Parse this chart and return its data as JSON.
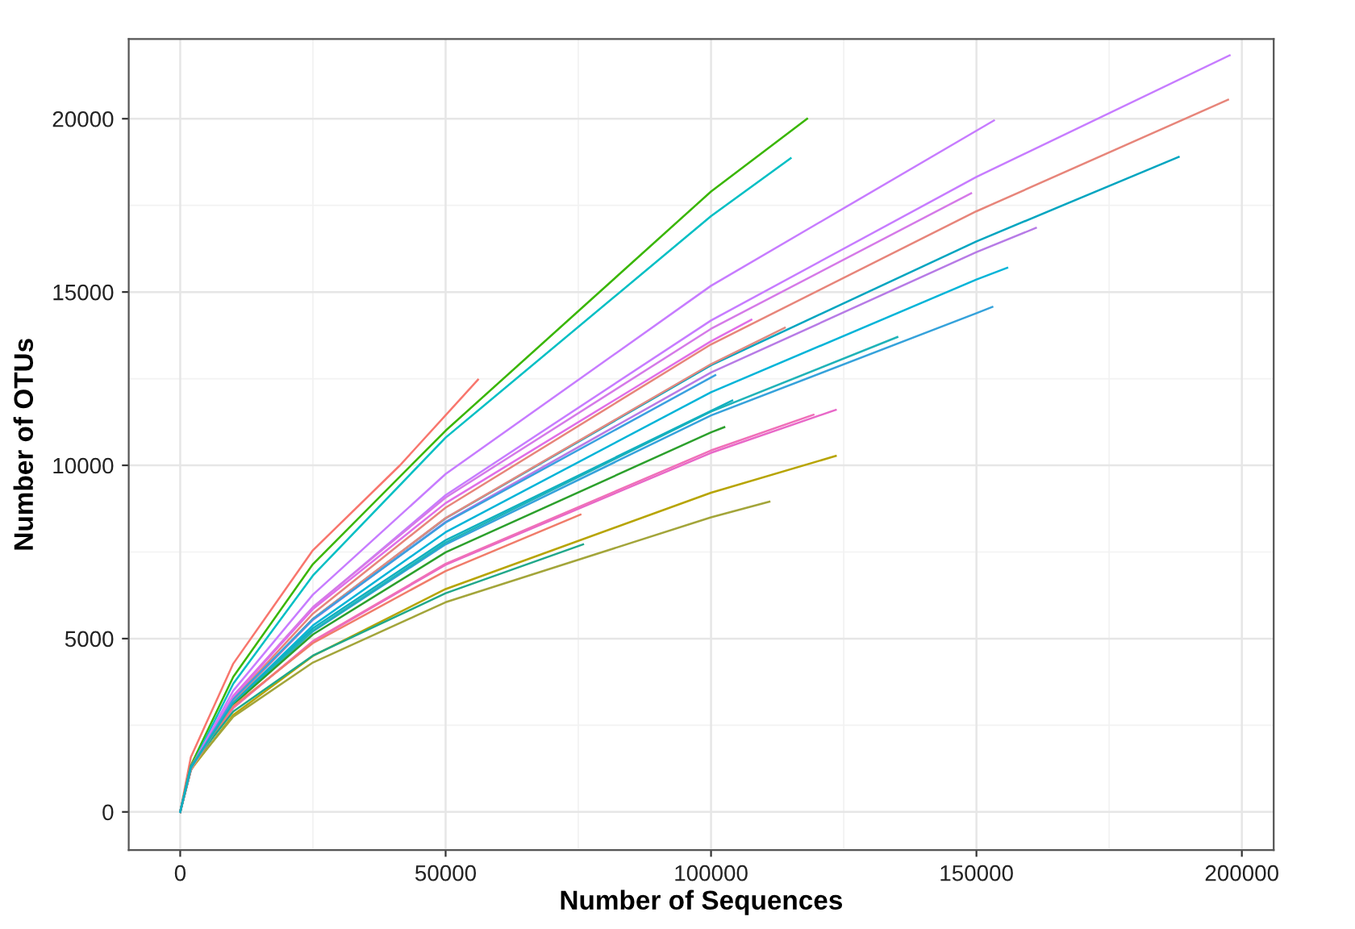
{
  "chart_data": {
    "type": "line",
    "xlabel": "Number of Sequences",
    "ylabel": "Number of OTUs",
    "xlim": [
      -9700,
      206000
    ],
    "ylim": [
      -1100,
      22300
    ],
    "xticks": [
      0,
      50000,
      100000,
      150000,
      200000
    ],
    "yticks": [
      0,
      5000,
      10000,
      15000,
      20000
    ],
    "grid": true,
    "legend": false,
    "line_style": "solid",
    "marker": "none",
    "series": [
      {
        "color": "#f8766d",
        "x": [
          0,
          2000,
          10000,
          25000,
          41400,
          56100
        ],
        "values": [
          0,
          1580,
          4280,
          7550,
          10000,
          12470
        ]
      },
      {
        "color": "#39b600",
        "x": [
          0,
          2000,
          10000,
          25000,
          50000,
          100000,
          118100
        ],
        "values": [
          0,
          1340,
          3900,
          7150,
          11000,
          17900,
          20000
        ]
      },
      {
        "color": "#00bfc4",
        "x": [
          0,
          2000,
          10000,
          25000,
          50000,
          100000,
          115000
        ],
        "values": [
          0,
          1270,
          3700,
          6820,
          10800,
          17190,
          18860
        ]
      },
      {
        "color": "#c77cff",
        "x": [
          0,
          2000,
          10000,
          25000,
          50000,
          100000,
          153300
        ],
        "values": [
          0,
          1260,
          3500,
          6270,
          9750,
          15180,
          19950
        ]
      },
      {
        "color": "#c77cff",
        "x": [
          0,
          2000,
          10000,
          25000,
          50000,
          100000,
          150000,
          197700
        ],
        "values": [
          0,
          1190,
          3300,
          5890,
          9140,
          14180,
          18320,
          21830
        ]
      },
      {
        "color": "#e7857a",
        "x": [
          0,
          2000,
          10000,
          25000,
          50000,
          100000,
          150000,
          197400
        ],
        "values": [
          0,
          1200,
          3250,
          5720,
          8780,
          13490,
          17330,
          20550
        ]
      },
      {
        "color": "#00a5c0",
        "x": [
          0,
          2000,
          10000,
          25000,
          50000,
          100000,
          150000,
          188100
        ],
        "values": [
          0,
          1210,
          3200,
          5570,
          8470,
          12890,
          16460,
          18900
        ]
      },
      {
        "color": "#d57ae8",
        "x": [
          0,
          2000,
          10000,
          25000,
          50000,
          100000,
          149000
        ],
        "values": [
          0,
          1240,
          3350,
          5910,
          9070,
          13940,
          17850
        ]
      },
      {
        "color": "#b77be6",
        "x": [
          0,
          2000,
          10000,
          25000,
          50000,
          100000,
          150000,
          161200
        ],
        "values": [
          0,
          1220,
          3200,
          5540,
          8370,
          12680,
          16150,
          16850
        ]
      },
      {
        "color": "#00b4d8",
        "x": [
          0,
          2000,
          10000,
          25000,
          50000,
          100000,
          150000,
          155800
        ],
        "values": [
          0,
          1230,
          3150,
          5380,
          8070,
          12110,
          15360,
          15700
        ]
      },
      {
        "color": "#35a2db",
        "x": [
          0,
          2000,
          10000,
          25000,
          50000,
          100000,
          150000,
          153000
        ],
        "values": [
          0,
          1250,
          3100,
          5210,
          7720,
          11440,
          14390,
          14570
        ]
      },
      {
        "color": "#e06ee8",
        "x": [
          0,
          2000,
          10000,
          25000,
          50000,
          100000,
          107600
        ],
        "values": [
          0,
          1260,
          3350,
          5850,
          8910,
          13580,
          14200
        ]
      },
      {
        "color": "#1fb3b8",
        "x": [
          0,
          2000,
          10000,
          25000,
          50000,
          100000,
          135100
        ],
        "values": [
          0,
          1240,
          3100,
          5230,
          7770,
          11550,
          13700
        ]
      },
      {
        "color": "#e868c8",
        "x": [
          0,
          2000,
          10000,
          25000,
          50000,
          100000,
          123500
        ],
        "values": [
          0,
          1260,
          3000,
          4910,
          7130,
          10360,
          11600
        ]
      },
      {
        "color": "#f06fb8",
        "x": [
          0,
          2000,
          10000,
          25000,
          50000,
          100000,
          119300
        ],
        "values": [
          0,
          1260,
          3000,
          4930,
          7160,
          10430,
          11460
        ]
      },
      {
        "color": "#b7a400",
        "x": [
          0,
          2000,
          10000,
          25000,
          50000,
          100000,
          123500
        ],
        "values": [
          0,
          1220,
          2800,
          4500,
          6430,
          9210,
          10270
        ]
      },
      {
        "color": "#a3a53a",
        "x": [
          0,
          2000,
          10000,
          25000,
          50000,
          100000,
          111000
        ],
        "values": [
          0,
          1250,
          2750,
          4310,
          6050,
          8500,
          8950
        ]
      },
      {
        "color": "#2ca02c",
        "x": [
          0,
          2000,
          10000,
          25000,
          50000,
          100000,
          102500
        ],
        "values": [
          0,
          1280,
          3100,
          5120,
          7490,
          10950,
          11100
        ]
      },
      {
        "color": "#f07c6a",
        "x": [
          0,
          2000,
          10000,
          25000,
          50000,
          75400
        ],
        "values": [
          0,
          1340,
          3050,
          4870,
          6950,
          8580
        ]
      },
      {
        "color": "#20a88a",
        "x": [
          0,
          2000,
          10000,
          25000,
          50000,
          75900
        ],
        "values": [
          0,
          1330,
          2900,
          4510,
          6310,
          7720
        ]
      },
      {
        "color": "#e08a80",
        "x": [
          0,
          2000,
          10000,
          25000,
          50000,
          100000,
          113900
        ],
        "values": [
          0,
          1210,
          3200,
          5570,
          8480,
          12920,
          13970
        ]
      },
      {
        "color": "#3aa0e0",
        "x": [
          0,
          2000,
          10000,
          25000,
          50000,
          100800
        ],
        "values": [
          0,
          1270,
          3250,
          5560,
          8350,
          12600
        ]
      },
      {
        "color": "#10b0c0",
        "x": [
          0,
          2000,
          10000,
          25000,
          50000,
          104000
        ],
        "values": [
          0,
          1270,
          3150,
          5300,
          7840,
          11870
        ]
      }
    ]
  }
}
